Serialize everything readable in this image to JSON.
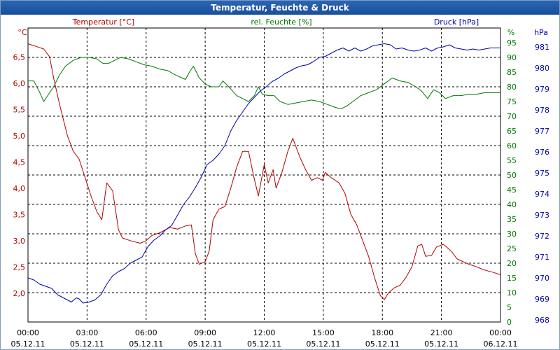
{
  "window": {
    "title": "Temperatur, Feuchte & Druck"
  },
  "chart_data": {
    "type": "line",
    "title": "Temperatur, Feuchte & Druck",
    "x_hours": [
      0,
      24
    ],
    "x_ticks": [
      {
        "h": 0,
        "time": "00:00",
        "date": "05.12.11"
      },
      {
        "h": 3,
        "time": "03:00",
        "date": "05.12.11"
      },
      {
        "h": 6,
        "time": "06:00",
        "date": "05.12.11"
      },
      {
        "h": 9,
        "time": "09:00",
        "date": "05.12.11"
      },
      {
        "h": 12,
        "time": "12:00",
        "date": "05.12.11"
      },
      {
        "h": 15,
        "time": "15:00",
        "date": "05.12.11"
      },
      {
        "h": 18,
        "time": "18:00",
        "date": "05.12.11"
      },
      {
        "h": 21,
        "time": "21:00",
        "date": "05.12.11"
      },
      {
        "h": 24,
        "time": "00:00",
        "date": "06.12.11"
      }
    ],
    "grid": true,
    "axes": {
      "temperature": {
        "label": "Temperatur [°C]",
        "unit": "°C",
        "color": "#b00000",
        "range": [
          1.45,
          7.05
        ],
        "ticks": [
          "2,0",
          "2,5",
          "3,0",
          "3,5",
          "4,0",
          "4,5",
          "5,0",
          "5,5",
          "6,0",
          "6,5"
        ],
        "tick_values": [
          2.0,
          2.5,
          3.0,
          3.5,
          4.0,
          4.5,
          5.0,
          5.5,
          6.0,
          6.5
        ]
      },
      "humidity": {
        "label": "rel. Feuchte [%]",
        "unit": "%",
        "color": "#007800",
        "range": [
          0,
          100
        ],
        "ticks": [
          "0",
          "5",
          "10",
          "15",
          "20",
          "25",
          "30",
          "35",
          "40",
          "45",
          "50",
          "55",
          "60",
          "65",
          "70",
          "75",
          "80",
          "85",
          "90",
          "95"
        ],
        "tick_values": [
          0,
          5,
          10,
          15,
          20,
          25,
          30,
          35,
          40,
          45,
          50,
          55,
          60,
          65,
          70,
          75,
          80,
          85,
          90,
          95
        ]
      },
      "pressure": {
        "label": "Druck [hPa]",
        "unit": "hPa",
        "color": "#0000b0",
        "range": [
          967.9,
          981.9
        ],
        "ticks": [
          "968",
          "969",
          "970",
          "971",
          "972",
          "973",
          "974",
          "975",
          "976",
          "977",
          "978",
          "979",
          "980",
          "981"
        ],
        "tick_values": [
          968,
          969,
          970,
          971,
          972,
          973,
          974,
          975,
          976,
          977,
          978,
          979,
          980,
          981
        ]
      }
    },
    "series": [
      {
        "name": "Temperatur",
        "axis": "temperature",
        "color": "#b00000",
        "points": [
          [
            0,
            6.75
          ],
          [
            0.4,
            6.7
          ],
          [
            0.8,
            6.65
          ],
          [
            1.1,
            6.5
          ],
          [
            1.3,
            6.1
          ],
          [
            1.6,
            5.6
          ],
          [
            2.0,
            5.0
          ],
          [
            2.3,
            4.7
          ],
          [
            2.6,
            4.55
          ],
          [
            2.9,
            4.2
          ],
          [
            3.2,
            3.85
          ],
          [
            3.5,
            3.55
          ],
          [
            3.75,
            3.4
          ],
          [
            4.0,
            4.1
          ],
          [
            4.3,
            3.95
          ],
          [
            4.6,
            3.2
          ],
          [
            4.8,
            3.05
          ],
          [
            5.2,
            3.0
          ],
          [
            5.7,
            2.95
          ],
          [
            6.0,
            3.0
          ],
          [
            6.3,
            3.1
          ],
          [
            6.7,
            3.15
          ],
          [
            7.2,
            3.25
          ],
          [
            7.6,
            3.22
          ],
          [
            8.0,
            3.28
          ],
          [
            8.3,
            3.3
          ],
          [
            8.5,
            2.75
          ],
          [
            8.7,
            2.55
          ],
          [
            9.0,
            2.6
          ],
          [
            9.2,
            2.8
          ],
          [
            9.4,
            3.4
          ],
          [
            9.7,
            3.6
          ],
          [
            10.0,
            3.65
          ],
          [
            10.3,
            4.0
          ],
          [
            10.6,
            4.4
          ],
          [
            10.9,
            4.7
          ],
          [
            11.2,
            4.7
          ],
          [
            11.45,
            4.25
          ],
          [
            11.7,
            3.85
          ],
          [
            12.0,
            4.45
          ],
          [
            12.2,
            4.1
          ],
          [
            12.45,
            4.35
          ],
          [
            12.6,
            4.0
          ],
          [
            12.9,
            4.3
          ],
          [
            13.2,
            4.7
          ],
          [
            13.45,
            4.95
          ],
          [
            13.8,
            4.6
          ],
          [
            14.1,
            4.35
          ],
          [
            14.4,
            4.15
          ],
          [
            14.7,
            4.2
          ],
          [
            14.95,
            4.15
          ],
          [
            15.1,
            4.3
          ],
          [
            15.4,
            4.2
          ],
          [
            15.8,
            4.1
          ],
          [
            16.1,
            3.9
          ],
          [
            16.4,
            3.5
          ],
          [
            16.7,
            3.3
          ],
          [
            17.0,
            3.0
          ],
          [
            17.3,
            2.7
          ],
          [
            17.6,
            2.3
          ],
          [
            17.9,
            1.95
          ],
          [
            18.1,
            1.88
          ],
          [
            18.3,
            2.0
          ],
          [
            18.6,
            2.1
          ],
          [
            18.9,
            2.15
          ],
          [
            19.2,
            2.3
          ],
          [
            19.5,
            2.5
          ],
          [
            19.8,
            2.9
          ],
          [
            20.0,
            2.93
          ],
          [
            20.2,
            2.7
          ],
          [
            20.5,
            2.72
          ],
          [
            20.75,
            2.88
          ],
          [
            21.1,
            2.93
          ],
          [
            21.5,
            2.8
          ],
          [
            21.8,
            2.65
          ],
          [
            22.1,
            2.6
          ],
          [
            22.4,
            2.55
          ],
          [
            22.8,
            2.5
          ],
          [
            23.1,
            2.45
          ],
          [
            23.4,
            2.42
          ],
          [
            23.6,
            2.4
          ],
          [
            24.0,
            2.35
          ]
        ]
      },
      {
        "name": "rel. Feuchte",
        "axis": "humidity",
        "color": "#007800",
        "points": [
          [
            0,
            82
          ],
          [
            0.3,
            82
          ],
          [
            0.6,
            78
          ],
          [
            0.8,
            75
          ],
          [
            1.0,
            77
          ],
          [
            1.3,
            80
          ],
          [
            1.6,
            84
          ],
          [
            1.9,
            87
          ],
          [
            2.3,
            89
          ],
          [
            2.7,
            90
          ],
          [
            3.1,
            90
          ],
          [
            3.5,
            89.5
          ],
          [
            3.8,
            88
          ],
          [
            4.1,
            88
          ],
          [
            4.4,
            89
          ],
          [
            4.7,
            90
          ],
          [
            5.1,
            89.5
          ],
          [
            5.5,
            88.5
          ],
          [
            5.9,
            87.5
          ],
          [
            6.3,
            87
          ],
          [
            6.7,
            86
          ],
          [
            7.1,
            85.5
          ],
          [
            7.5,
            84
          ],
          [
            8.0,
            82.5
          ],
          [
            8.2,
            85
          ],
          [
            8.4,
            87
          ],
          [
            8.7,
            83
          ],
          [
            9.0,
            81
          ],
          [
            9.3,
            80
          ],
          [
            9.7,
            80
          ],
          [
            9.9,
            82
          ],
          [
            10.2,
            80
          ],
          [
            10.6,
            77
          ],
          [
            10.9,
            76
          ],
          [
            11.2,
            75
          ],
          [
            11.5,
            77
          ],
          [
            11.7,
            80
          ],
          [
            11.9,
            77.5
          ],
          [
            12.2,
            77
          ],
          [
            12.5,
            77
          ],
          [
            12.8,
            75
          ],
          [
            13.2,
            74
          ],
          [
            13.6,
            74.5
          ],
          [
            14.0,
            75
          ],
          [
            14.4,
            75.5
          ],
          [
            14.8,
            75
          ],
          [
            15.2,
            74
          ],
          [
            15.6,
            73
          ],
          [
            15.9,
            72.5
          ],
          [
            16.2,
            73.5
          ],
          [
            16.5,
            75
          ],
          [
            16.9,
            77
          ],
          [
            17.3,
            78
          ],
          [
            17.7,
            79
          ],
          [
            18.1,
            81
          ],
          [
            18.5,
            83
          ],
          [
            18.9,
            82
          ],
          [
            19.3,
            81.5
          ],
          [
            19.7,
            80
          ],
          [
            20.0,
            78.5
          ],
          [
            20.3,
            76
          ],
          [
            20.6,
            79
          ],
          [
            20.9,
            78
          ],
          [
            21.2,
            76
          ],
          [
            21.6,
            77
          ],
          [
            22.0,
            77
          ],
          [
            22.4,
            77.5
          ],
          [
            22.8,
            77.5
          ],
          [
            23.2,
            78
          ],
          [
            23.6,
            78
          ],
          [
            24.0,
            78
          ]
        ]
      },
      {
        "name": "Druck",
        "axis": "pressure",
        "color": "#0000b0",
        "points": [
          [
            0,
            970.0
          ],
          [
            0.3,
            969.9
          ],
          [
            0.6,
            969.7
          ],
          [
            0.9,
            969.6
          ],
          [
            1.2,
            969.5
          ],
          [
            1.5,
            969.2
          ],
          [
            1.8,
            969.05
          ],
          [
            2.0,
            968.95
          ],
          [
            2.2,
            968.85
          ],
          [
            2.45,
            969.05
          ],
          [
            2.6,
            969.0
          ],
          [
            2.8,
            968.8
          ],
          [
            3.1,
            968.85
          ],
          [
            3.4,
            968.95
          ],
          [
            3.7,
            969.2
          ],
          [
            4.0,
            969.7
          ],
          [
            4.3,
            970.1
          ],
          [
            4.6,
            970.3
          ],
          [
            4.9,
            970.45
          ],
          [
            5.2,
            970.7
          ],
          [
            5.5,
            970.85
          ],
          [
            5.8,
            971.0
          ],
          [
            6.1,
            971.5
          ],
          [
            6.4,
            971.8
          ],
          [
            6.7,
            972.0
          ],
          [
            7.0,
            972.3
          ],
          [
            7.3,
            972.5
          ],
          [
            7.6,
            973.0
          ],
          [
            7.9,
            973.5
          ],
          [
            8.2,
            973.85
          ],
          [
            8.5,
            974.3
          ],
          [
            8.8,
            974.8
          ],
          [
            9.1,
            975.4
          ],
          [
            9.4,
            975.6
          ],
          [
            9.7,
            975.9
          ],
          [
            10.0,
            976.3
          ],
          [
            10.3,
            977.0
          ],
          [
            10.6,
            977.5
          ],
          [
            10.9,
            977.9
          ],
          [
            11.2,
            978.3
          ],
          [
            11.5,
            978.6
          ],
          [
            11.8,
            978.9
          ],
          [
            12.1,
            979.1
          ],
          [
            12.4,
            979.35
          ],
          [
            12.7,
            979.5
          ],
          [
            13.0,
            979.7
          ],
          [
            13.3,
            979.85
          ],
          [
            13.6,
            980.0
          ],
          [
            13.9,
            980.1
          ],
          [
            14.2,
            980.15
          ],
          [
            14.5,
            980.3
          ],
          [
            14.8,
            980.5
          ],
          [
            15.1,
            980.55
          ],
          [
            15.4,
            980.7
          ],
          [
            15.7,
            980.85
          ],
          [
            16.0,
            980.95
          ],
          [
            16.3,
            980.8
          ],
          [
            16.6,
            980.95
          ],
          [
            16.9,
            980.8
          ],
          [
            17.2,
            980.9
          ],
          [
            17.5,
            981.05
          ],
          [
            17.8,
            981.1
          ],
          [
            18.1,
            981.15
          ],
          [
            18.4,
            981.1
          ],
          [
            18.7,
            980.9
          ],
          [
            19.0,
            980.95
          ],
          [
            19.3,
            980.85
          ],
          [
            19.6,
            980.8
          ],
          [
            19.9,
            980.85
          ],
          [
            20.2,
            980.95
          ],
          [
            20.5,
            980.8
          ],
          [
            20.8,
            980.95
          ],
          [
            21.1,
            981.0
          ],
          [
            21.4,
            981.1
          ],
          [
            21.7,
            980.95
          ],
          [
            22.0,
            980.9
          ],
          [
            22.3,
            980.85
          ],
          [
            22.6,
            980.9
          ],
          [
            22.9,
            980.85
          ],
          [
            23.2,
            980.9
          ],
          [
            23.5,
            980.95
          ],
          [
            23.8,
            980.95
          ],
          [
            24.0,
            980.95
          ]
        ]
      }
    ]
  }
}
